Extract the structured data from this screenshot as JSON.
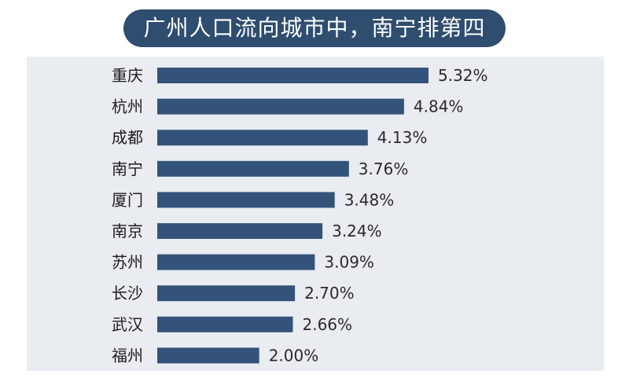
{
  "chart_data": {
    "type": "bar",
    "orientation": "horizontal",
    "title": "广州人口流向城市中，南宁排第四",
    "categories": [
      "重庆",
      "杭州",
      "成都",
      "南宁",
      "厦门",
      "南京",
      "苏州",
      "长沙",
      "武汉",
      "福州"
    ],
    "values": [
      5.32,
      4.84,
      4.13,
      3.76,
      3.48,
      3.24,
      3.09,
      2.7,
      2.66,
      2.0
    ],
    "value_labels": [
      "5.32%",
      "4.84%",
      "4.13%",
      "3.76%",
      "3.48%",
      "3.24%",
      "3.09%",
      "2.70%",
      "2.66%",
      "2.00%"
    ],
    "unit": "%",
    "xlim": [
      0,
      5.32
    ],
    "grid": false,
    "colors": {
      "bar": "#34537a",
      "title_bg": "#2e4d6f",
      "panel_bg": "#e9ecf1"
    }
  }
}
